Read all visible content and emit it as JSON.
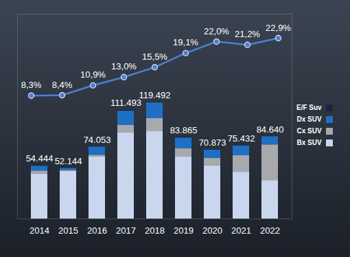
{
  "chart_data": {
    "type": "bar",
    "stacked": true,
    "categories": [
      "2014",
      "2015",
      "2016",
      "2017",
      "2018",
      "2019",
      "2020",
      "2021",
      "2022"
    ],
    "series": [
      {
        "name": "E/F Suv",
        "color": "#1b2740",
        "values": [
          400,
          300,
          300,
          1000,
          500,
          900,
          300,
          600,
          300
        ]
      },
      {
        "name": "Dx SUV",
        "color": "#1f6fc4",
        "values": [
          5000,
          2200,
          8500,
          14500,
          16000,
          11000,
          8500,
          10000,
          8500
        ]
      },
      {
        "name": "Cx SUV",
        "color": "#a7a9ad",
        "values": [
          3000,
          1000,
          1500,
          7500,
          13000,
          8500,
          7500,
          17000,
          36500
        ]
      },
      {
        "name": "Bx SUV",
        "color": "#c9d6ee",
        "values": [
          46044,
          48644,
          63753,
          88493,
          89992,
          63465,
          54573,
          47832,
          39340
        ]
      },
      {
        "type": "line",
        "axis": "y2",
        "color": "#4f7fd0",
        "marker": "circle",
        "line_style": "solid",
        "values": [
          8.3,
          8.4,
          10.9,
          13.0,
          15.5,
          19.1,
          22.0,
          21.2,
          22.9
        ],
        "value_labels": [
          "8,3%",
          "8,4%",
          "10,9%",
          "13,0%",
          "15,5%",
          "19,1%",
          "22,0%",
          "21,2%",
          "22,9%"
        ]
      }
    ],
    "totals": [
      54444,
      52144,
      74053,
      111493,
      119492,
      83865,
      70873,
      75432,
      84640
    ],
    "total_labels": [
      "54.444",
      "52.144",
      "74.053",
      "111.493",
      "119.492",
      "83.865",
      "70.873",
      "75.432",
      "84.640"
    ],
    "ylim": [
      0,
      210000
    ],
    "y2lim": [
      -23,
      29
    ],
    "tick_labels": "x",
    "legend": "right"
  }
}
